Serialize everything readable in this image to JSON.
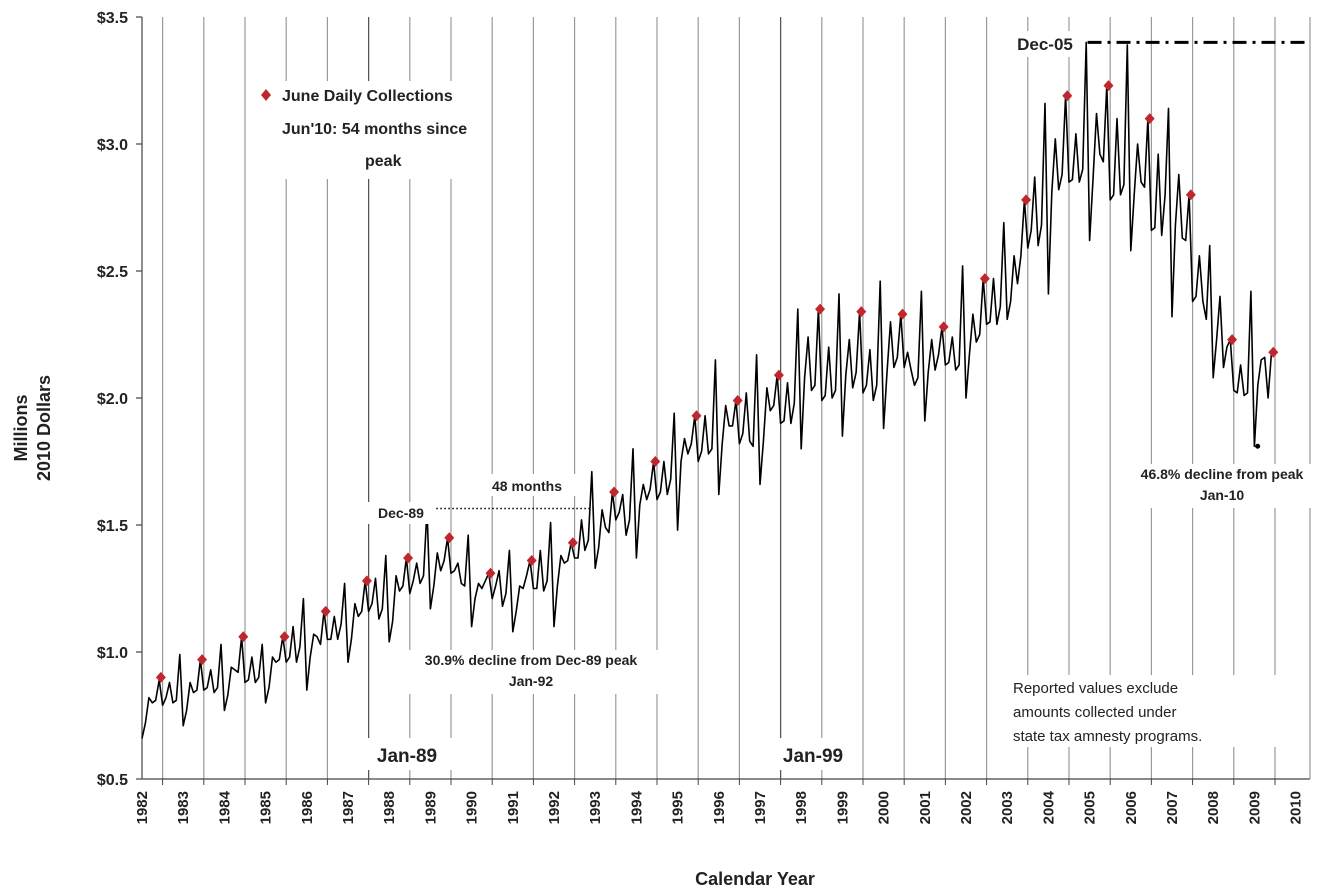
{
  "chart_data": {
    "type": "line",
    "title": "",
    "xlabel": "Calendar Year",
    "ylabel_line1": "Millions",
    "ylabel_line2": "2010 Dollars",
    "ylim": [
      0.5,
      3.5
    ],
    "xlim": [
      1982.5,
      2010.85
    ],
    "grid": "vertical",
    "y_ticks": [
      "$0.5",
      "$1.0",
      "$1.5",
      "$2.0",
      "$2.5",
      "$3.0",
      "$3.5"
    ],
    "y_tick_values": [
      0.5,
      1.0,
      1.5,
      2.0,
      2.5,
      3.0,
      3.5
    ],
    "x_ticks": [
      "1982",
      "1983",
      "1984",
      "1985",
      "1986",
      "1987",
      "1988",
      "1989",
      "1990",
      "1991",
      "1992",
      "1993",
      "1994",
      "1995",
      "1996",
      "1997",
      "1998",
      "1999",
      "2000",
      "2001",
      "2002",
      "2003",
      "2004",
      "2005",
      "2006",
      "2007",
      "2008",
      "2009",
      "2010"
    ],
    "legend": {
      "label": "June Daily Collections",
      "marker": "diamond",
      "color": "#c0272d",
      "placement": "top-left"
    },
    "series": [
      {
        "name": "Daily Collections",
        "color": "#000000",
        "start_year": 1982,
        "start_month": 7,
        "values": [
          0.66,
          0.72,
          0.82,
          0.8,
          0.81,
          0.89,
          0.79,
          0.82,
          0.88,
          0.8,
          0.81,
          0.99,
          0.71,
          0.77,
          0.88,
          0.84,
          0.85,
          0.97,
          0.85,
          0.86,
          0.93,
          0.84,
          0.86,
          1.03,
          0.77,
          0.83,
          0.94,
          0.93,
          0.92,
          1.06,
          0.88,
          0.89,
          0.98,
          0.88,
          0.9,
          1.03,
          0.8,
          0.86,
          0.98,
          0.96,
          0.97,
          1.06,
          0.96,
          0.98,
          1.1,
          0.96,
          1.02,
          1.21,
          0.85,
          0.98,
          1.07,
          1.06,
          1.03,
          1.16,
          1.05,
          1.05,
          1.14,
          1.05,
          1.11,
          1.27,
          0.96,
          1.05,
          1.19,
          1.14,
          1.16,
          1.28,
          1.16,
          1.19,
          1.29,
          1.13,
          1.17,
          1.38,
          1.04,
          1.12,
          1.3,
          1.24,
          1.26,
          1.37,
          1.23,
          1.28,
          1.35,
          1.27,
          1.3,
          1.56,
          1.17,
          1.26,
          1.39,
          1.32,
          1.36,
          1.45,
          1.31,
          1.32,
          1.35,
          1.27,
          1.26,
          1.46,
          1.1,
          1.21,
          1.27,
          1.25,
          1.28,
          1.31,
          1.21,
          1.26,
          1.32,
          1.18,
          1.23,
          1.4,
          1.08,
          1.16,
          1.26,
          1.25,
          1.3,
          1.36,
          1.25,
          1.25,
          1.4,
          1.24,
          1.28,
          1.51,
          1.1,
          1.26,
          1.38,
          1.35,
          1.36,
          1.43,
          1.37,
          1.37,
          1.52,
          1.4,
          1.44,
          1.71,
          1.33,
          1.41,
          1.56,
          1.49,
          1.47,
          1.63,
          1.52,
          1.55,
          1.62,
          1.46,
          1.52,
          1.8,
          1.37,
          1.58,
          1.66,
          1.6,
          1.64,
          1.75,
          1.6,
          1.63,
          1.75,
          1.62,
          1.68,
          1.94,
          1.48,
          1.75,
          1.84,
          1.78,
          1.82,
          1.93,
          1.75,
          1.79,
          1.93,
          1.78,
          1.8,
          2.15,
          1.62,
          1.82,
          1.97,
          1.89,
          1.89,
          1.99,
          1.82,
          1.86,
          2.02,
          1.83,
          1.81,
          2.17,
          1.66,
          1.83,
          2.04,
          1.95,
          1.97,
          2.09,
          1.9,
          1.91,
          2.06,
          1.9,
          1.98,
          2.35,
          1.8,
          2.08,
          2.24,
          2.03,
          2.05,
          2.35,
          1.99,
          2.01,
          2.2,
          2.0,
          2.03,
          2.41,
          1.85,
          2.09,
          2.23,
          2.04,
          2.1,
          2.34,
          2.02,
          2.05,
          2.19,
          1.99,
          2.05,
          2.46,
          1.88,
          2.1,
          2.3,
          2.12,
          2.16,
          2.33,
          2.12,
          2.18,
          2.11,
          2.05,
          2.08,
          2.42,
          1.91,
          2.1,
          2.23,
          2.11,
          2.17,
          2.28,
          2.13,
          2.14,
          2.24,
          2.11,
          2.13,
          2.52,
          2.0,
          2.17,
          2.33,
          2.22,
          2.25,
          2.47,
          2.29,
          2.3,
          2.47,
          2.29,
          2.36,
          2.69,
          2.31,
          2.38,
          2.56,
          2.45,
          2.56,
          2.78,
          2.59,
          2.66,
          2.87,
          2.6,
          2.68,
          3.16,
          2.41,
          2.81,
          3.02,
          2.82,
          2.88,
          3.19,
          2.85,
          2.86,
          3.04,
          2.85,
          2.9,
          3.4,
          2.62,
          2.86,
          3.12,
          2.96,
          2.93,
          3.23,
          2.78,
          2.8,
          3.1,
          2.8,
          2.84,
          3.39,
          2.58,
          2.8,
          3.0,
          2.85,
          2.83,
          3.1,
          2.66,
          2.67,
          2.96,
          2.64,
          2.8,
          3.14,
          2.32,
          2.68,
          2.88,
          2.63,
          2.62,
          2.8,
          2.38,
          2.4,
          2.56,
          2.38,
          2.31,
          2.6,
          2.08,
          2.23,
          2.4,
          2.12,
          2.2,
          2.23,
          2.03,
          2.02,
          2.13,
          2.01,
          2.02,
          2.42,
          1.81,
          2.05,
          2.15,
          2.16,
          2.0,
          2.18
        ]
      }
    ],
    "june_points": [
      {
        "year": 1983,
        "value": 0.9
      },
      {
        "year": 1984,
        "value": 0.97
      },
      {
        "year": 1985,
        "value": 1.06
      },
      {
        "year": 1986,
        "value": 1.06
      },
      {
        "year": 1987,
        "value": 1.16
      },
      {
        "year": 1988,
        "value": 1.28
      },
      {
        "year": 1989,
        "value": 1.37
      },
      {
        "year": 1990,
        "value": 1.45
      },
      {
        "year": 1991,
        "value": 1.31
      },
      {
        "year": 1992,
        "value": 1.36
      },
      {
        "year": 1993,
        "value": 1.43
      },
      {
        "year": 1994,
        "value": 1.63
      },
      {
        "year": 1995,
        "value": 1.75
      },
      {
        "year": 1996,
        "value": 1.93
      },
      {
        "year": 1997,
        "value": 1.99
      },
      {
        "year": 1998,
        "value": 2.09
      },
      {
        "year": 1999,
        "value": 2.35
      },
      {
        "year": 2000,
        "value": 2.34
      },
      {
        "year": 2001,
        "value": 2.33
      },
      {
        "year": 2002,
        "value": 2.28
      },
      {
        "year": 2003,
        "value": 2.47
      },
      {
        "year": 2004,
        "value": 2.78
      },
      {
        "year": 2005,
        "value": 3.19
      },
      {
        "year": 2006,
        "value": 3.23
      },
      {
        "year": 2007,
        "value": 3.1
      },
      {
        "year": 2008,
        "value": 2.8
      },
      {
        "year": 2009,
        "value": 2.23
      },
      {
        "year": 2010,
        "value": 2.18
      }
    ],
    "markers": {
      "vertical_lines": [
        {
          "year": 1988.0,
          "label": "Jan-89"
        },
        {
          "year": 1998.0,
          "label": "Jan-99"
        }
      ],
      "peak_1989": {
        "label": "Dec-89",
        "year": 1989.45,
        "value": 1.565,
        "end_year": 1993.45
      },
      "peak_2005": {
        "label": "Dec-05",
        "year": 2005.45,
        "value": 3.4,
        "end_year": 2010.85
      },
      "trough_2010": {
        "year": 2009.58,
        "value": 1.81
      }
    },
    "annotations": {
      "legend_note_line1": "Jun'10: 54 months since",
      "legend_note_line2": "peak",
      "span_48": "48 months",
      "dec89": "Dec-89",
      "decline_92_line1": "30.9% decline from Dec-89 peak",
      "decline_92_line2": "Jan-92",
      "dec05": "Dec-05",
      "decline_10_line1": "46.8% decline from peak",
      "decline_10_line2": "Jan-10",
      "note_line1": "Reported values exclude",
      "note_line2": "amounts collected under",
      "note_line3": "state tax amnesty programs.",
      "jan89": "Jan-89",
      "jan99": "Jan-99"
    }
  }
}
